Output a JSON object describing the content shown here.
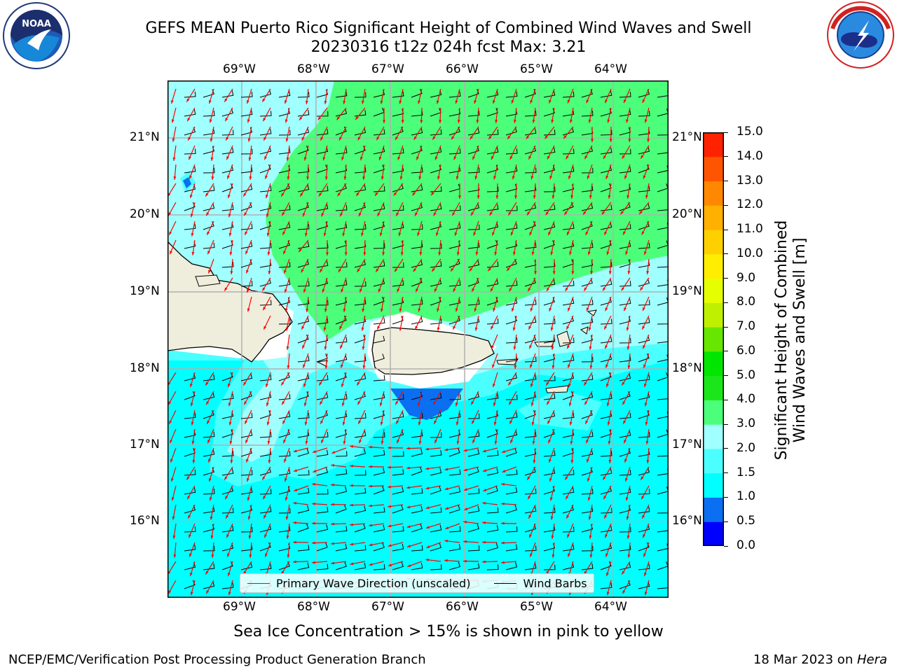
{
  "header": {
    "title_line1": "GEFS MEAN Puerto Rico Significant Height of Combined Wind Waves and Swell",
    "title_line2": "20230316 t12z 024h fcst   Max: 3.21"
  },
  "logos": {
    "left": {
      "text": "NOAA",
      "ring_text": "NATIONAL OCEANIC AND ATMOSPHERIC ADMINISTRATION · U.S. DEPARTMENT OF COMMERCE"
    },
    "right": {
      "ring_text": "NATIONAL WEATHER SERVICE"
    }
  },
  "map": {
    "lon_labels": [
      "69°W",
      "68°W",
      "67°W",
      "66°W",
      "65°W",
      "64°W"
    ],
    "lat_labels": [
      "21°N",
      "20°N",
      "19°N",
      "18°N",
      "17°N",
      "16°N"
    ]
  },
  "legend": {
    "primary": "Primary Wave Direction (unscaled)",
    "barbs": "Wind Barbs",
    "primary_color": "#ff0000",
    "barbs_color": "#000000"
  },
  "colorbar": {
    "title_line1": "Significant Height of Combined",
    "title_line2": "Wind Waves and Swell [m]",
    "ticks": [
      "0.0",
      "0.5",
      "1.0",
      "1.5",
      "2.0",
      "3.0",
      "4.0",
      "5.0",
      "6.0",
      "7.0",
      "8.0",
      "9.0",
      "10.0",
      "11.0",
      "12.0",
      "13.0",
      "14.0",
      "15.0"
    ],
    "colors": [
      "#0000ff",
      "#0a6ff0",
      "#00ffff",
      "#4cffff",
      "#a0ffff",
      "#4cff7a",
      "#1ae61a",
      "#00e600",
      "#66e600",
      "#bff000",
      "#e6ff00",
      "#ffee00",
      "#ffd000",
      "#ffb000",
      "#ff8800",
      "#ff5500",
      "#ff2200",
      "#ff0000"
    ]
  },
  "note": "Sea Ice Concentration > 15% is shown in pink to yellow",
  "footer": {
    "left": "NCEP/EMC/Verification Post Processing Product Generation Branch",
    "right_prefix": "18 Mar 2023 on ",
    "right_host": "Hera"
  }
}
